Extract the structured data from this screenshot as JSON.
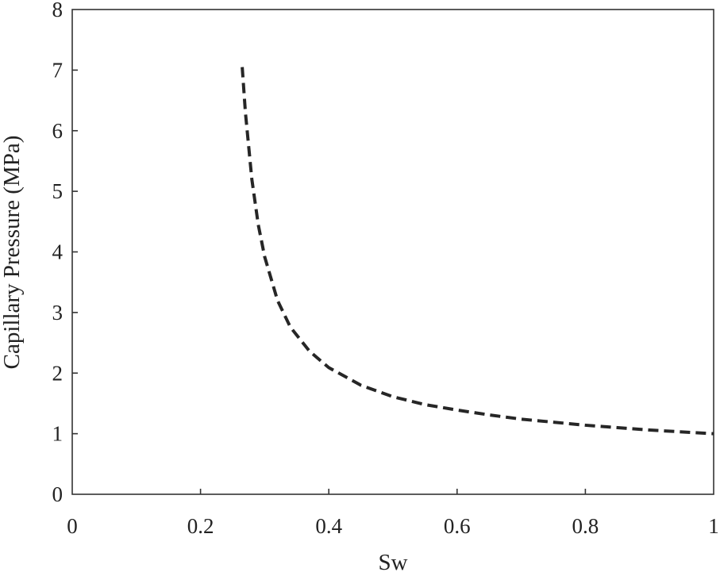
{
  "chart_data": {
    "type": "line",
    "title": "",
    "xlabel": "Sw",
    "ylabel": "Capillary Pressure (MPa)",
    "xlim": [
      0,
      1
    ],
    "ylim": [
      0,
      8
    ],
    "xticks": [
      0,
      0.2,
      0.4,
      0.6,
      0.8,
      1
    ],
    "xtick_labels": [
      "0",
      "0.2",
      "0.4",
      "0.6",
      "0.8",
      "1"
    ],
    "yticks": [
      0,
      1,
      2,
      3,
      4,
      5,
      6,
      7,
      8
    ],
    "ytick_labels": [
      "0",
      "1",
      "2",
      "3",
      "4",
      "5",
      "6",
      "7",
      "8"
    ],
    "grid": false,
    "legend": "none",
    "series": [
      {
        "style": "dashed",
        "color": "#262626",
        "x": [
          0.265,
          0.27,
          0.28,
          0.29,
          0.3,
          0.32,
          0.34,
          0.37,
          0.4,
          0.45,
          0.5,
          0.55,
          0.6,
          0.65,
          0.7,
          0.75,
          0.8,
          0.85,
          0.9,
          0.95,
          1.0
        ],
        "y": [
          7.05,
          6.3,
          5.2,
          4.45,
          3.92,
          3.2,
          2.76,
          2.36,
          2.09,
          1.8,
          1.61,
          1.48,
          1.39,
          1.31,
          1.24,
          1.19,
          1.14,
          1.1,
          1.06,
          1.03,
          1.0
        ]
      }
    ]
  }
}
